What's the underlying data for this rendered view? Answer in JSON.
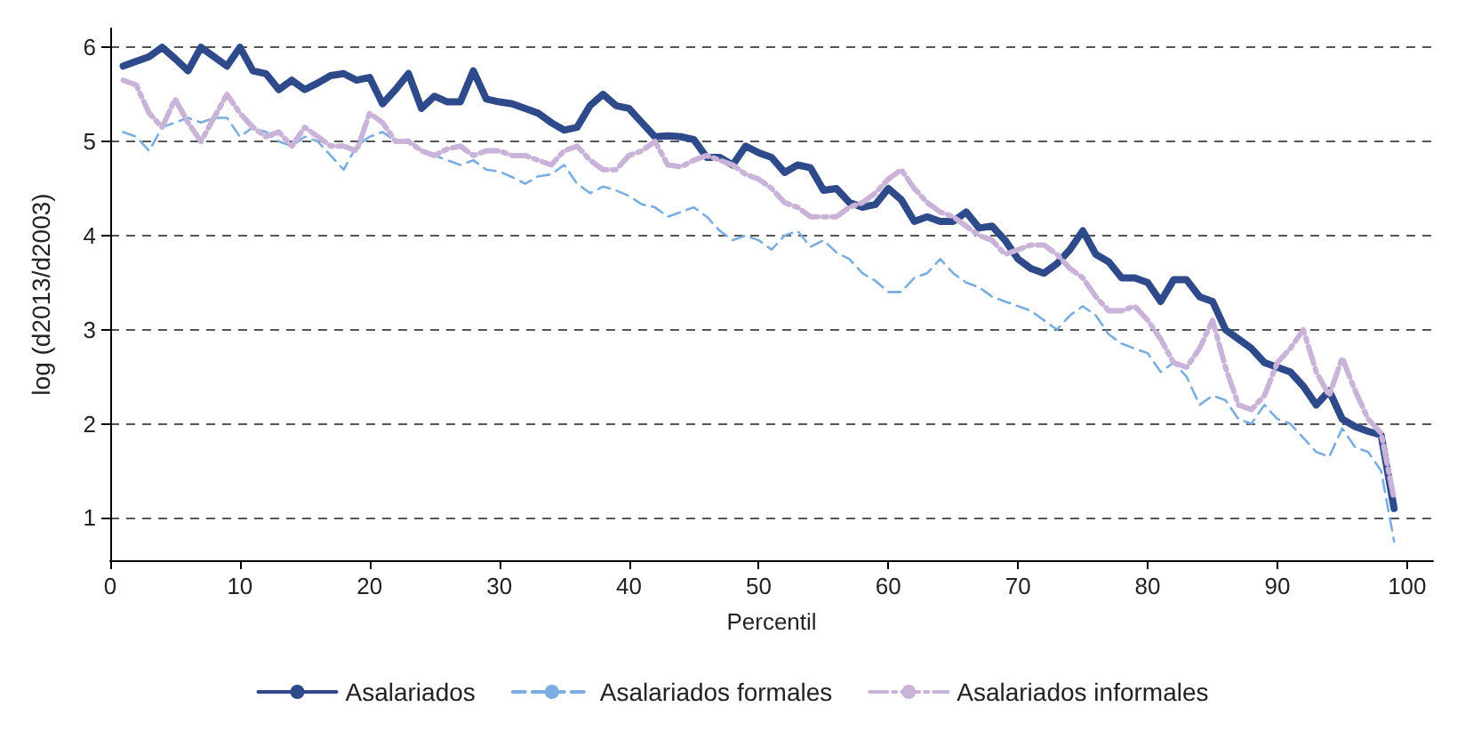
{
  "chart_data": {
    "type": "line",
    "xlabel": "Percentil",
    "ylabel": "log (d2013/d2003)",
    "x": [
      1,
      2,
      3,
      4,
      5,
      6,
      7,
      8,
      9,
      10,
      11,
      12,
      13,
      14,
      15,
      16,
      17,
      18,
      19,
      20,
      21,
      22,
      23,
      24,
      25,
      26,
      27,
      28,
      29,
      30,
      31,
      32,
      33,
      34,
      35,
      36,
      37,
      38,
      39,
      40,
      41,
      42,
      43,
      44,
      45,
      46,
      47,
      48,
      49,
      50,
      51,
      52,
      53,
      54,
      55,
      56,
      57,
      58,
      59,
      60,
      61,
      62,
      63,
      64,
      65,
      66,
      67,
      68,
      69,
      70,
      71,
      72,
      73,
      74,
      75,
      76,
      77,
      78,
      79,
      80,
      81,
      82,
      83,
      84,
      85,
      86,
      87,
      88,
      89,
      90,
      91,
      92,
      93,
      94,
      95,
      96,
      97,
      98,
      99
    ],
    "series": [
      {
        "name": "Asalariados",
        "color": "#2e4a8a",
        "line_style": "solid",
        "values": [
          5.8,
          5.85,
          5.9,
          6.0,
          5.88,
          5.75,
          6.0,
          5.9,
          5.8,
          6.0,
          5.75,
          5.72,
          5.55,
          5.65,
          5.55,
          5.62,
          5.7,
          5.72,
          5.65,
          5.68,
          5.4,
          5.55,
          5.72,
          5.35,
          5.48,
          5.42,
          5.42,
          5.75,
          5.45,
          5.42,
          5.4,
          5.35,
          5.3,
          5.2,
          5.12,
          5.15,
          5.38,
          5.5,
          5.38,
          5.35,
          5.2,
          5.05,
          5.06,
          5.05,
          5.02,
          4.83,
          4.83,
          4.75,
          4.95,
          4.88,
          4.83,
          4.67,
          4.75,
          4.72,
          4.48,
          4.5,
          4.35,
          4.3,
          4.33,
          4.5,
          4.38,
          4.15,
          4.2,
          4.15,
          4.15,
          4.25,
          4.08,
          4.1,
          3.95,
          3.75,
          3.65,
          3.6,
          3.7,
          3.85,
          4.05,
          3.8,
          3.72,
          3.55,
          3.55,
          3.5,
          3.3,
          3.53,
          3.53,
          3.35,
          3.3,
          3.0,
          2.9,
          2.8,
          2.65,
          2.6,
          2.55,
          2.4,
          2.2,
          2.35,
          2.05,
          1.97,
          1.92,
          1.88,
          1.1
        ]
      },
      {
        "name": "Asalariados formales",
        "color": "#7aaee0",
        "line_style": "dashed",
        "values": [
          5.1,
          5.05,
          4.9,
          5.15,
          5.2,
          5.25,
          5.2,
          5.25,
          5.25,
          5.05,
          5.15,
          5.1,
          5.0,
          4.95,
          5.05,
          5.0,
          4.85,
          4.7,
          4.95,
          5.05,
          5.1,
          5.0,
          5.02,
          4.9,
          4.85,
          4.8,
          4.75,
          4.8,
          4.7,
          4.68,
          4.62,
          4.55,
          4.63,
          4.65,
          4.75,
          4.55,
          4.45,
          4.52,
          4.48,
          4.42,
          4.33,
          4.3,
          4.2,
          4.25,
          4.3,
          4.2,
          4.05,
          3.95,
          4.0,
          3.95,
          3.85,
          4.0,
          4.05,
          3.88,
          3.95,
          3.82,
          3.75,
          3.6,
          3.52,
          3.4,
          3.4,
          3.55,
          3.6,
          3.75,
          3.6,
          3.5,
          3.45,
          3.35,
          3.3,
          3.25,
          3.2,
          3.1,
          3.0,
          3.15,
          3.25,
          3.15,
          2.95,
          2.85,
          2.8,
          2.75,
          2.55,
          2.65,
          2.5,
          2.2,
          2.3,
          2.25,
          2.05,
          2.0,
          2.2,
          2.05,
          2.0,
          1.85,
          1.7,
          1.65,
          1.95,
          1.75,
          1.7,
          1.5,
          0.75
        ]
      },
      {
        "name": "Asalariados informales",
        "color": "#c9b3d9",
        "line_style": "dashed",
        "values": [
          5.65,
          5.6,
          5.3,
          5.15,
          5.45,
          5.2,
          5.0,
          5.25,
          5.5,
          5.3,
          5.15,
          5.05,
          5.1,
          4.95,
          5.15,
          5.05,
          4.95,
          4.95,
          4.9,
          5.3,
          5.2,
          5.0,
          5.0,
          4.9,
          4.85,
          4.92,
          4.95,
          4.85,
          4.9,
          4.9,
          4.85,
          4.85,
          4.8,
          4.75,
          4.9,
          4.95,
          4.8,
          4.7,
          4.7,
          4.85,
          4.9,
          5.0,
          4.75,
          4.73,
          4.8,
          4.85,
          4.8,
          4.75,
          4.65,
          4.6,
          4.5,
          4.35,
          4.3,
          4.2,
          4.2,
          4.2,
          4.3,
          4.35,
          4.45,
          4.6,
          4.7,
          4.5,
          4.35,
          4.25,
          4.2,
          4.1,
          4.0,
          3.95,
          3.8,
          3.85,
          3.9,
          3.9,
          3.8,
          3.65,
          3.55,
          3.35,
          3.2,
          3.2,
          3.25,
          3.1,
          2.9,
          2.65,
          2.6,
          2.8,
          3.1,
          2.6,
          2.2,
          2.15,
          2.3,
          2.65,
          2.8,
          3.0,
          2.55,
          2.3,
          2.7,
          2.35,
          2.05,
          1.9,
          1.2
        ]
      }
    ],
    "xlim": [
      0,
      102
    ],
    "xticks": [
      0,
      10,
      20,
      30,
      40,
      50,
      60,
      70,
      80,
      90,
      100
    ],
    "ylim": [
      0.55,
      6.2
    ],
    "yticks": [
      1,
      2,
      3,
      4,
      5,
      6
    ],
    "grid": "y",
    "legend": "bottom",
    "marker": "none"
  }
}
